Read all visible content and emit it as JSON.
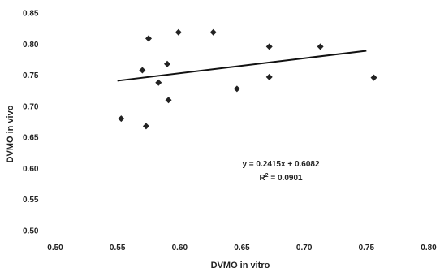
{
  "chart_data": {
    "type": "scatter",
    "title": "",
    "xlabel": "DVMO in vitro",
    "ylabel": "DVMO in vivo",
    "xlim": [
      0.5,
      0.8
    ],
    "ylim": [
      0.5,
      0.85
    ],
    "xticks": [
      "0.50",
      "0.55",
      "0.60",
      "0.65",
      "0.70",
      "0.75",
      "0.80"
    ],
    "yticks": [
      "0.50",
      "0.55",
      "0.60",
      "0.65",
      "0.70",
      "0.75",
      "0.80",
      "0.85"
    ],
    "grid": false,
    "legend": "none",
    "marker": "diamond",
    "marker_color": "#222222",
    "series": [
      {
        "points": [
          {
            "x": 0.553,
            "y": 0.68
          },
          {
            "x": 0.57,
            "y": 0.758
          },
          {
            "x": 0.573,
            "y": 0.668
          },
          {
            "x": 0.575,
            "y": 0.809
          },
          {
            "x": 0.583,
            "y": 0.738
          },
          {
            "x": 0.59,
            "y": 0.768
          },
          {
            "x": 0.591,
            "y": 0.71
          },
          {
            "x": 0.599,
            "y": 0.819
          },
          {
            "x": 0.627,
            "y": 0.819
          },
          {
            "x": 0.646,
            "y": 0.728
          },
          {
            "x": 0.672,
            "y": 0.796
          },
          {
            "x": 0.672,
            "y": 0.747
          },
          {
            "x": 0.713,
            "y": 0.796
          },
          {
            "x": 0.756,
            "y": 0.746
          }
        ]
      }
    ],
    "trendline": {
      "slope": 0.2415,
      "intercept": 0.6082,
      "x_range": [
        0.55,
        0.75
      ],
      "equation_label": "y = 0.2415x + 0.6082",
      "r2_label_prefix": "R",
      "r2_label_sup": "2",
      "r2_label_suffix": " = 0.0901"
    }
  }
}
